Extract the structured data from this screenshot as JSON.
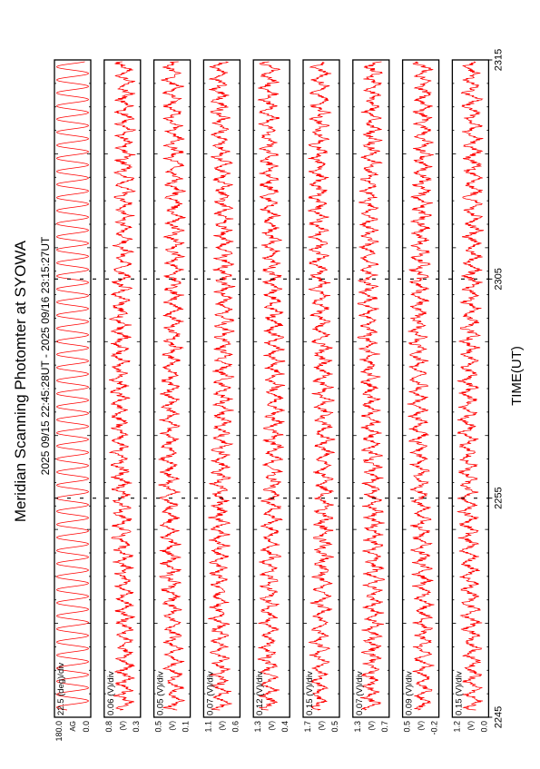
{
  "title": "Meridian Scanning Photomter at SYOWA",
  "subtitle": "2025 09/15 22:45:28UT - 2025 09/16 23:15:27UT",
  "xlabel": "TIME(UT)",
  "colors": {
    "trace": "#ff0000",
    "axis": "#000000",
    "background": "#ffffff"
  },
  "chart_data": {
    "type": "line",
    "orientation": "rotated-90-counterclockwise",
    "x_ticks": [
      "2245",
      "2255",
      "2305",
      "2315"
    ],
    "panels": [
      {
        "scale": "22.5 (deg)/div",
        "ticks": [
          "180.0",
          "0.0"
        ],
        "unit": "AG"
      },
      {
        "scale": "0.06 (V)/div",
        "ticks": [
          "0.8",
          "0.3"
        ],
        "unit": "(V)"
      },
      {
        "scale": "0.05 (V)/div",
        "ticks": [
          "0.5",
          "0.1"
        ],
        "unit": "(V)"
      },
      {
        "scale": "0.07 (V)/div",
        "ticks": [
          "1.1",
          "0.6"
        ],
        "unit": "(V)"
      },
      {
        "scale": "0.12 (V)/div",
        "ticks": [
          "1.3",
          "0.4"
        ],
        "unit": "(V)"
      },
      {
        "scale": "0.15 (V)/div",
        "ticks": [
          "1.7",
          "0.5"
        ],
        "unit": "(V)"
      },
      {
        "scale": "0.07 (V)/div",
        "ticks": [
          "1.3",
          "0.7"
        ],
        "unit": "(V)"
      },
      {
        "scale": "0.09 (V)/div",
        "ticks": [
          "0.5",
          "-0.2"
        ],
        "unit": "(V)"
      },
      {
        "scale": "0.15 (V)/div",
        "ticks": [
          "1.2",
          "0.0"
        ],
        "unit": "(V)"
      }
    ]
  }
}
